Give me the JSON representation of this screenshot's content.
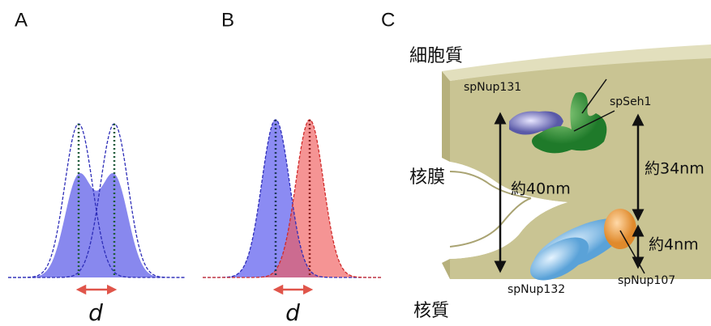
{
  "panels": {
    "a": {
      "label": "A",
      "distance": "d"
    },
    "b": {
      "label": "B",
      "distance": "d"
    },
    "c": {
      "label": "C",
      "cytoplasm": "細胞質",
      "nuclear_envelope": "核膜",
      "nucleoplasm": "核質",
      "proteins": [
        "spNup131",
        "spSeh1",
        "spNup132",
        "spNup107"
      ],
      "measures": [
        "約40nm",
        "約34nm",
        "約4nm"
      ]
    }
  }
}
